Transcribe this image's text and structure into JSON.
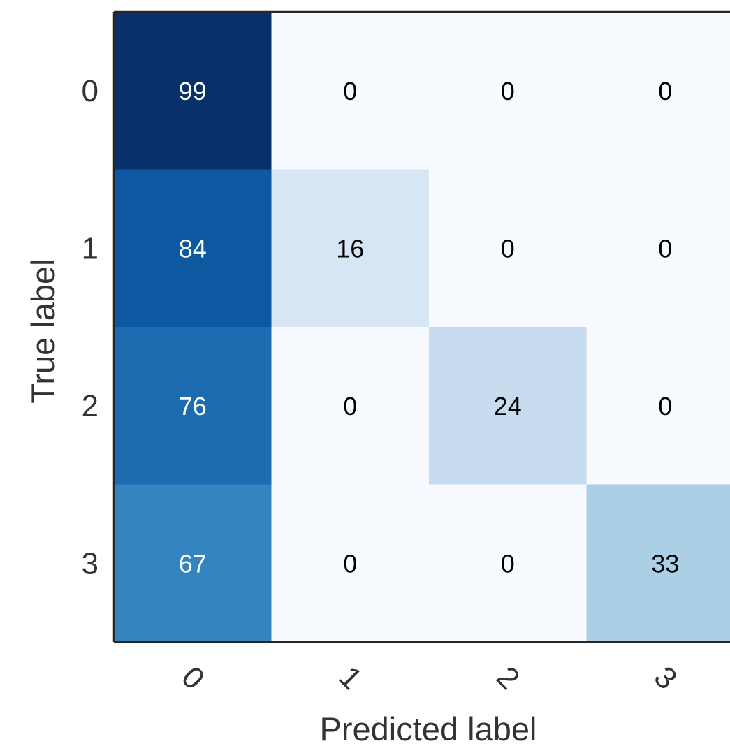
{
  "chart_data": {
    "type": "heatmap",
    "title": "",
    "xlabel": "Predicted label",
    "ylabel": "True label",
    "x_categories": [
      "0",
      "1",
      "2",
      "3"
    ],
    "y_categories": [
      "0",
      "1",
      "2",
      "3"
    ],
    "values": [
      [
        99,
        0,
        0,
        0
      ],
      [
        84,
        16,
        0,
        0
      ],
      [
        76,
        0,
        24,
        0
      ],
      [
        67,
        0,
        0,
        33
      ]
    ],
    "colormap": "Blues",
    "value_range": [
      0,
      99
    ],
    "x_tick_rotation_deg": 45,
    "grid": false,
    "legend": "none"
  }
}
